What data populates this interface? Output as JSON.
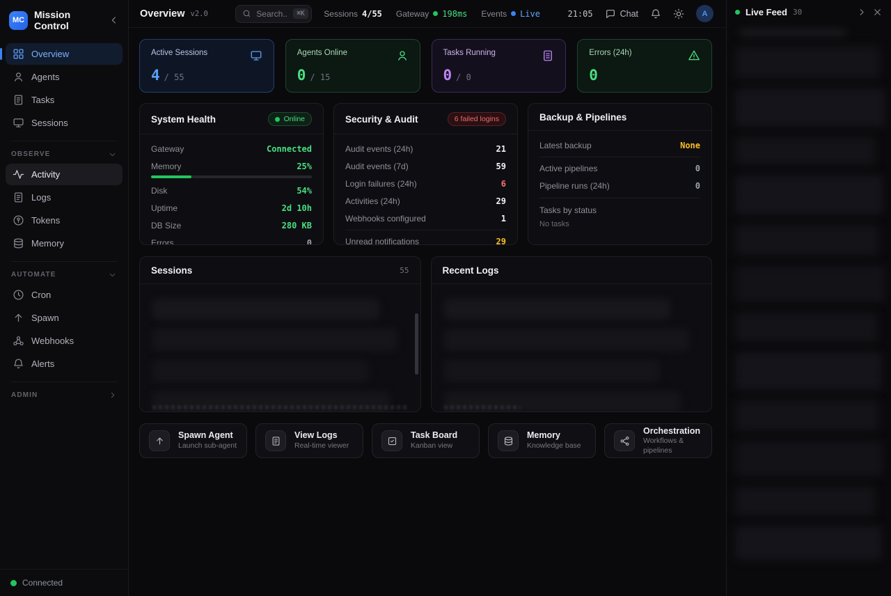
{
  "app": {
    "logo_text": "MC",
    "title": "Mission Control"
  },
  "colors": {
    "accent_blue": "#3b82f6",
    "green": "#22c55e",
    "purple": "#c084fc",
    "amber": "#fbbf24",
    "red": "#f87171"
  },
  "sidebar": {
    "main_items": [
      {
        "icon": "grid",
        "label": "Overview",
        "state": "active-blue"
      },
      {
        "icon": "user",
        "label": "Agents"
      },
      {
        "icon": "file",
        "label": "Tasks"
      },
      {
        "icon": "monitor",
        "label": "Sessions"
      }
    ],
    "observe": {
      "label": "Observe",
      "items": [
        {
          "icon": "activity",
          "label": "Activity",
          "state": "active-gray"
        },
        {
          "icon": "file",
          "label": "Logs"
        },
        {
          "icon": "coin",
          "label": "Tokens"
        },
        {
          "icon": "db",
          "label": "Memory"
        }
      ]
    },
    "automate": {
      "label": "Automate",
      "items": [
        {
          "icon": "clock",
          "label": "Cron"
        },
        {
          "icon": "arrow-up",
          "label": "Spawn"
        },
        {
          "icon": "webhook",
          "label": "Webhooks"
        },
        {
          "icon": "bell",
          "label": "Alerts"
        }
      ]
    },
    "admin": {
      "label": "Admin"
    },
    "footer_status": "Connected"
  },
  "topbar": {
    "title": "Overview",
    "version": "v2.0",
    "search": {
      "placeholder": "Search...",
      "shortcut": "⌘K"
    },
    "stats": [
      {
        "label": "Sessions",
        "value": "4/55",
        "vclass": "v-white"
      },
      {
        "label": "Gateway",
        "dot": "#22c55e",
        "value": "198ms",
        "vclass": "v-green"
      },
      {
        "label": "Events",
        "dot": "#3b82f6",
        "value": "Live",
        "vclass": "v-blue"
      }
    ],
    "time": "21:05",
    "chat_label": "Chat",
    "avatar_initial": "A"
  },
  "stat_cards": [
    {
      "theme": "card-blue",
      "label": "Active Sessions",
      "icon": "monitor",
      "value": "4",
      "sep": "/",
      "total": "55"
    },
    {
      "theme": "card-green",
      "label": "Agents Online",
      "icon": "user",
      "value": "0",
      "sep": "/",
      "total": "15"
    },
    {
      "theme": "card-purple",
      "label": "Tasks Running",
      "icon": "clipboard",
      "value": "0",
      "sep": "/",
      "total": "0"
    },
    {
      "theme": "card-green",
      "label": "Errors (24h)",
      "icon": "alert",
      "value": "0"
    }
  ],
  "panels": {
    "system_health": {
      "title": "System Health",
      "badge": "Online",
      "rows": [
        {
          "label": "Gateway",
          "value": "Connected",
          "vclass": "v-green"
        },
        {
          "label": "Memory",
          "value": "25%",
          "vclass": "v-green",
          "bar": "25%"
        },
        {
          "label": "Disk",
          "value": "54%",
          "vclass": "v-green"
        },
        {
          "label": "Uptime",
          "value": "2d 10h",
          "vclass": "v-green"
        },
        {
          "label": "DB Size",
          "value": "280 KB",
          "vclass": "v-green"
        },
        {
          "label": "Errors",
          "value": "0",
          "vclass": "v-dim"
        }
      ]
    },
    "security": {
      "title": "Security & Audit",
      "badge": "6 failed logins",
      "rows": [
        {
          "label": "Audit events (24h)",
          "value": "21",
          "vclass": "v-white"
        },
        {
          "label": "Audit events (7d)",
          "value": "59",
          "vclass": "v-white"
        },
        {
          "label": "Login failures (24h)",
          "value": "6",
          "vclass": "v-red"
        },
        {
          "label": "Activities (24h)",
          "value": "29",
          "vclass": "v-white"
        },
        {
          "label": "Webhooks configured",
          "value": "1",
          "vclass": "v-white"
        },
        {
          "label": "Unread notifications",
          "value": "29",
          "vclass": "v-amber",
          "row_class": "divided"
        }
      ]
    },
    "backup": {
      "title": "Backup & Pipelines",
      "rows": [
        {
          "label": "Latest backup",
          "value": "None",
          "vclass": "v-amber"
        },
        {
          "label": "Active pipelines",
          "value": "0",
          "vclass": "v-dim",
          "row_class": "divided"
        },
        {
          "label": "Pipeline runs (24h)",
          "value": "0",
          "vclass": "v-dim"
        }
      ],
      "tasks_label": "Tasks by status",
      "tasks_empty": "No tasks"
    }
  },
  "sessions_panel": {
    "title": "Sessions",
    "count": "55"
  },
  "logs_panel": {
    "title": "Recent Logs"
  },
  "quick_actions": [
    {
      "icon": "arrow-up",
      "title": "Spawn Agent",
      "subtitle": "Launch sub-agent"
    },
    {
      "icon": "file",
      "title": "View Logs",
      "subtitle": "Real-time viewer"
    },
    {
      "icon": "kanban",
      "title": "Task Board",
      "subtitle": "Kanban view"
    },
    {
      "icon": "db",
      "title": "Memory",
      "subtitle": "Knowledge base"
    },
    {
      "icon": "share",
      "title": "Orchestration",
      "subtitle": "Workflows & pipelines"
    }
  ],
  "live_feed": {
    "title": "Live Feed",
    "count": "30"
  }
}
